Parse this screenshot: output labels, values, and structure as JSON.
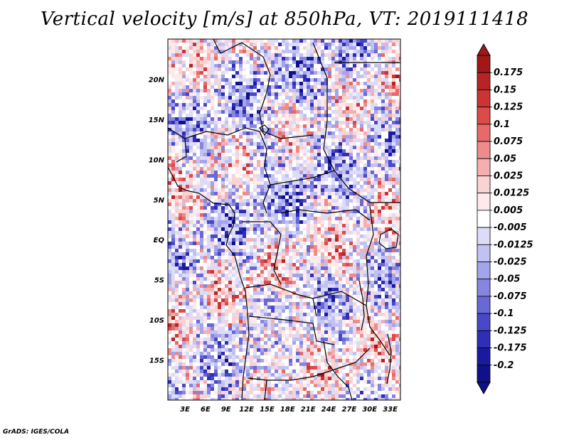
{
  "title": "Vertical velocity [m/s] at 850hPa, VT: 2019111418",
  "footer": "GrADS: IGES/COLA",
  "map": {
    "variable": "Vertical velocity",
    "units": "m/s",
    "level": "850hPa",
    "valid_time": "2019111418",
    "lon_ticks": [
      "3E",
      "6E",
      "9E",
      "12E",
      "15E",
      "18E",
      "21E",
      "24E",
      "27E",
      "30E",
      "33E"
    ],
    "lat_ticks": [
      "20N",
      "15N",
      "10N",
      "5N",
      "EQ",
      "5S",
      "10S",
      "15S"
    ],
    "lon_range": [
      0.5,
      34.5
    ],
    "lat_range": [
      -20,
      25
    ],
    "grid": false
  },
  "colorbar": {
    "labels": [
      "0.175",
      "0.15",
      "0.125",
      "0.1",
      "0.075",
      "0.05",
      "0.025",
      "0.0125",
      "0.005",
      "-0.005",
      "-0.0125",
      "-0.025",
      "-0.05",
      "-0.075",
      "-0.1",
      "-0.125",
      "-0.175",
      "-0.2"
    ],
    "colors": [
      "#a01818",
      "#b82424",
      "#cc3434",
      "#dc4a4a",
      "#e66a6a",
      "#ee8c8c",
      "#f4b0b0",
      "#fad2d2",
      "#fdeaea",
      "#ffffff",
      "#dcdcf8",
      "#c2c2f2",
      "#a4a4ea",
      "#8686e0",
      "#6868d6",
      "#4848c8",
      "#2e2eb6",
      "#1a1aa0",
      "#10108a"
    ],
    "top_cap_color": "#a01818",
    "bottom_cap_color": "#10108a"
  }
}
